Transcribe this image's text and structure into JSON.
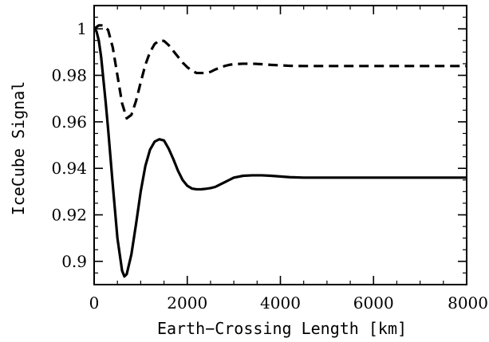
{
  "chart_data": {
    "type": "line",
    "title": "",
    "xlabel": "Earth−Crossing Length [km]",
    "ylabel": "IceCube Signal",
    "xlim": [
      0,
      8000
    ],
    "ylim": [
      0.89,
      1.01
    ],
    "xticks": [
      0,
      2000,
      4000,
      6000,
      8000
    ],
    "xtick_labels": [
      "0",
      "2000",
      "4000",
      "6000",
      "8000"
    ],
    "yticks": [
      0.9,
      0.92,
      0.94,
      0.96,
      0.98,
      1.0
    ],
    "ytick_labels": [
      "0.9",
      "0.92",
      "0.94",
      "0.96",
      "0.98",
      "1"
    ],
    "x_minor_step": 500,
    "y_minor_step": 0.005,
    "grid": false,
    "legend": "none",
    "series": [
      {
        "style": "dashed",
        "color": "#000000",
        "x": [
          0,
          100,
          200,
          300,
          400,
          500,
          600,
          700,
          800,
          900,
          1000,
          1100,
          1200,
          1300,
          1400,
          1500,
          1600,
          1700,
          1800,
          1900,
          2000,
          2100,
          2200,
          2300,
          2400,
          2500,
          2600,
          2700,
          2800,
          2900,
          3000,
          3200,
          3400,
          3600,
          3800,
          4000,
          4200,
          4500,
          5000,
          5500,
          6000,
          6500,
          7000,
          7500,
          8000
        ],
        "y": [
          1.0,
          1.0015,
          1.0015,
          0.9995,
          0.992,
          0.98,
          0.968,
          0.9615,
          0.963,
          0.969,
          0.977,
          0.9845,
          0.99,
          0.9935,
          0.995,
          0.9948,
          0.993,
          0.9905,
          0.988,
          0.9855,
          0.9835,
          0.982,
          0.981,
          0.981,
          0.981,
          0.9815,
          0.9825,
          0.9833,
          0.984,
          0.9845,
          0.9848,
          0.985,
          0.985,
          0.9848,
          0.9845,
          0.9843,
          0.9841,
          0.984,
          0.984,
          0.984,
          0.984,
          0.984,
          0.984,
          0.984,
          0.984
        ]
      },
      {
        "style": "solid",
        "color": "#000000",
        "x": [
          0,
          50,
          100,
          150,
          200,
          250,
          300,
          400,
          500,
          600,
          650,
          700,
          800,
          900,
          1000,
          1100,
          1200,
          1300,
          1400,
          1500,
          1600,
          1700,
          1800,
          1900,
          2000,
          2100,
          2200,
          2300,
          2400,
          2500,
          2600,
          2700,
          2800,
          2900,
          3000,
          3200,
          3400,
          3600,
          3800,
          4000,
          4200,
          4500,
          5000,
          5500,
          6000,
          6500,
          7000,
          7500,
          8000
        ],
        "y": [
          1.0,
          0.999,
          0.995,
          0.988,
          0.978,
          0.968,
          0.957,
          0.933,
          0.91,
          0.896,
          0.8935,
          0.8945,
          0.903,
          0.916,
          0.93,
          0.941,
          0.948,
          0.9515,
          0.9525,
          0.952,
          0.9485,
          0.944,
          0.939,
          0.935,
          0.9325,
          0.9313,
          0.931,
          0.931,
          0.9312,
          0.9315,
          0.932,
          0.933,
          0.934,
          0.935,
          0.936,
          0.9368,
          0.937,
          0.937,
          0.9368,
          0.9365,
          0.9362,
          0.936,
          0.936,
          0.936,
          0.936,
          0.936,
          0.936,
          0.936,
          0.936
        ]
      }
    ]
  }
}
